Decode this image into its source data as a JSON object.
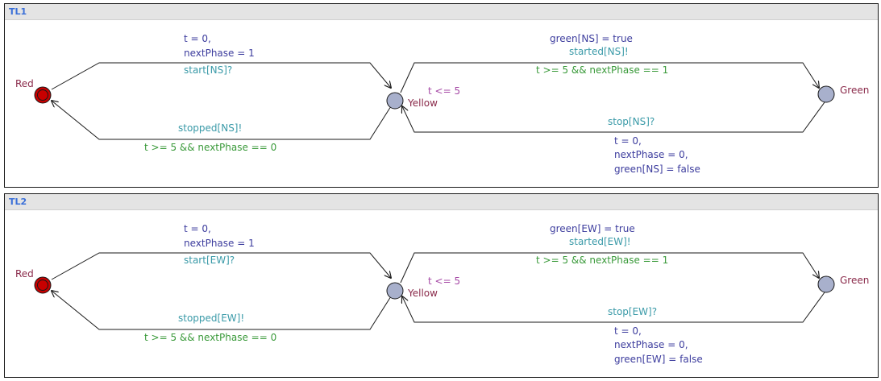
{
  "colors": {
    "location_fill": "#a8b0cc",
    "initial_fill": "#c80000",
    "edge": "#1a1a1a",
    "name": "#8a2a4a",
    "assign": "#3d3d9e",
    "sync": "#3a9aa8",
    "guard": "#3a9a3a",
    "invariant": "#a64aa6"
  },
  "templates": [
    {
      "title": "TL1",
      "locations": {
        "red": "Red",
        "yellow": "Yellow",
        "green": "Green"
      },
      "invariant": "t <= 5",
      "edge_red_yellow": {
        "assign": [
          "t = 0,",
          "nextPhase = 1"
        ],
        "sync": "start[NS]?"
      },
      "edge_yellow_red": {
        "sync": "stopped[NS]!",
        "guard": "t >= 5 && nextPhase == 0"
      },
      "edge_yellow_green": {
        "assign": "green[NS] = true",
        "sync": "started[NS]!",
        "guard": "t >= 5 && nextPhase == 1"
      },
      "edge_green_yellow": {
        "sync": "stop[NS]?",
        "assign": [
          "t = 0,",
          "nextPhase = 0,",
          "green[NS] = false"
        ]
      }
    },
    {
      "title": "TL2",
      "locations": {
        "red": "Red",
        "yellow": "Yellow",
        "green": "Green"
      },
      "invariant": "t <= 5",
      "edge_red_yellow": {
        "assign": [
          "t = 0,",
          "nextPhase = 1"
        ],
        "sync": "start[EW]?"
      },
      "edge_yellow_red": {
        "sync": "stopped[EW]!",
        "guard": "t >= 5 && nextPhase == 0"
      },
      "edge_yellow_green": {
        "assign": "green[EW] = true",
        "sync": "started[EW]!",
        "guard": "t >= 5 && nextPhase == 1"
      },
      "edge_green_yellow": {
        "sync": "stop[EW]?",
        "assign": [
          "t = 0,",
          "nextPhase = 0,",
          "green[EW] = false"
        ]
      }
    }
  ]
}
